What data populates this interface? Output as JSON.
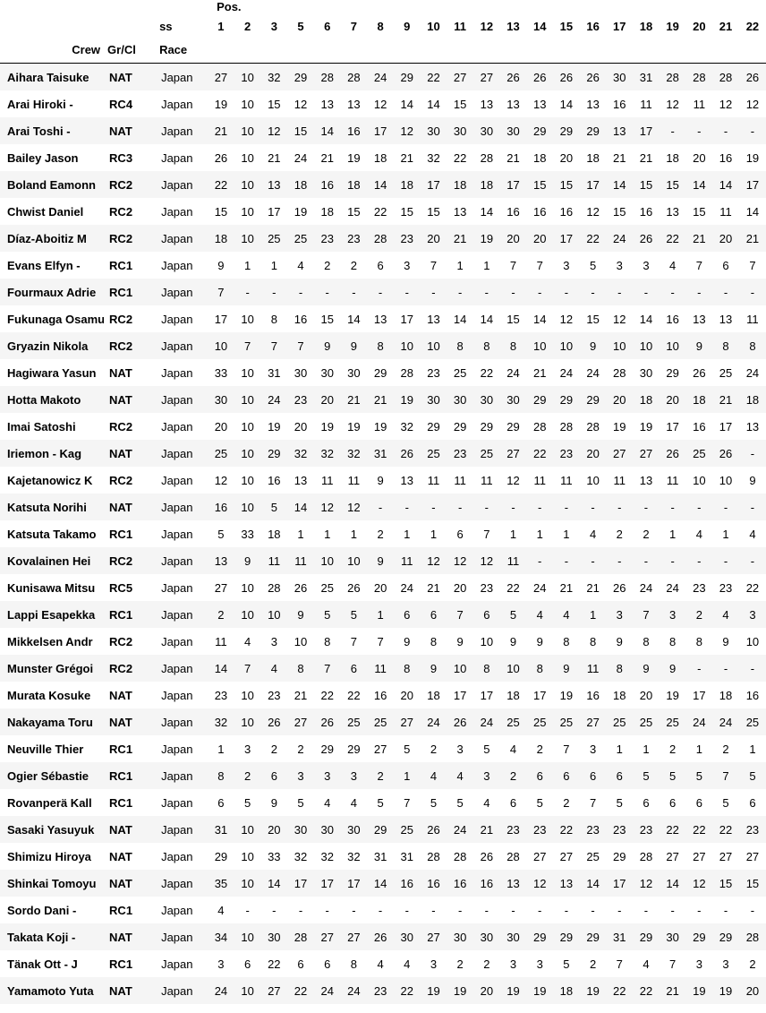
{
  "header": {
    "pos_label": "Pos.",
    "ss_label": "ss",
    "crew_label": "Crew",
    "group_label": "Gr/Cl",
    "race_label": "Race",
    "stages": [
      "1",
      "2",
      "3",
      "5",
      "6",
      "7",
      "8",
      "9",
      "10",
      "11",
      "12",
      "13",
      "14",
      "15",
      "16",
      "17",
      "18",
      "19",
      "20",
      "21",
      "22"
    ]
  },
  "rows": [
    {
      "crew": "Aihara Taisuke",
      "group": "NAT",
      "race": "Japan",
      "pos": [
        "27",
        "10",
        "32",
        "29",
        "28",
        "28",
        "24",
        "29",
        "22",
        "27",
        "27",
        "26",
        "26",
        "26",
        "26",
        "30",
        "31",
        "28",
        "28",
        "28",
        "26"
      ]
    },
    {
      "crew": "Arai Hiroki -",
      "group": "RC4",
      "race": "Japan",
      "pos": [
        "19",
        "10",
        "15",
        "12",
        "13",
        "13",
        "12",
        "14",
        "14",
        "15",
        "13",
        "13",
        "13",
        "14",
        "13",
        "16",
        "11",
        "12",
        "11",
        "12",
        "12"
      ]
    },
    {
      "crew": "Arai Toshi -",
      "group": "NAT",
      "race": "Japan",
      "pos": [
        "21",
        "10",
        "12",
        "15",
        "14",
        "16",
        "17",
        "12",
        "30",
        "30",
        "30",
        "30",
        "29",
        "29",
        "29",
        "13",
        "17",
        "-",
        "-",
        "-",
        "-"
      ]
    },
    {
      "crew": "Bailey Jason",
      "group": "RC3",
      "race": "Japan",
      "pos": [
        "26",
        "10",
        "21",
        "24",
        "21",
        "19",
        "18",
        "21",
        "32",
        "22",
        "28",
        "21",
        "18",
        "20",
        "18",
        "21",
        "21",
        "18",
        "20",
        "16",
        "19"
      ]
    },
    {
      "crew": "Boland Eamonn",
      "group": "RC2",
      "race": "Japan",
      "pos": [
        "22",
        "10",
        "13",
        "18",
        "16",
        "18",
        "14",
        "18",
        "17",
        "18",
        "18",
        "17",
        "15",
        "15",
        "17",
        "14",
        "15",
        "15",
        "14",
        "14",
        "17"
      ]
    },
    {
      "crew": "Chwist Daniel",
      "group": "RC2",
      "race": "Japan",
      "pos": [
        "15",
        "10",
        "17",
        "19",
        "18",
        "15",
        "22",
        "15",
        "15",
        "13",
        "14",
        "16",
        "16",
        "16",
        "12",
        "15",
        "16",
        "13",
        "15",
        "11",
        "14"
      ]
    },
    {
      "crew": "Díaz-Aboitiz M",
      "group": "RC2",
      "race": "Japan",
      "pos": [
        "18",
        "10",
        "25",
        "25",
        "23",
        "23",
        "28",
        "23",
        "20",
        "21",
        "19",
        "20",
        "20",
        "17",
        "22",
        "24",
        "26",
        "22",
        "21",
        "20",
        "21"
      ]
    },
    {
      "crew": "Evans Elfyn -",
      "group": "RC1",
      "race": "Japan",
      "pos": [
        "9",
        "1",
        "1",
        "4",
        "2",
        "2",
        "6",
        "3",
        "7",
        "1",
        "1",
        "7",
        "7",
        "3",
        "5",
        "3",
        "3",
        "4",
        "7",
        "6",
        "7"
      ]
    },
    {
      "crew": "Fourmaux Adrie",
      "group": "RC1",
      "race": "Japan",
      "pos": [
        "7",
        "-",
        "-",
        "-",
        "-",
        "-",
        "-",
        "-",
        "-",
        "-",
        "-",
        "-",
        "-",
        "-",
        "-",
        "-",
        "-",
        "-",
        "-",
        "-",
        "-"
      ]
    },
    {
      "crew": "Fukunaga Osamu",
      "group": "RC2",
      "race": "Japan",
      "pos": [
        "17",
        "10",
        "8",
        "16",
        "15",
        "14",
        "13",
        "17",
        "13",
        "14",
        "14",
        "15",
        "14",
        "12",
        "15",
        "12",
        "14",
        "16",
        "13",
        "13",
        "11"
      ]
    },
    {
      "crew": "Gryazin Nikola",
      "group": "RC2",
      "race": "Japan",
      "pos": [
        "10",
        "7",
        "7",
        "7",
        "9",
        "9",
        "8",
        "10",
        "10",
        "8",
        "8",
        "8",
        "10",
        "10",
        "9",
        "10",
        "10",
        "10",
        "9",
        "8",
        "8"
      ]
    },
    {
      "crew": "Hagiwara Yasun",
      "group": "NAT",
      "race": "Japan",
      "pos": [
        "33",
        "10",
        "31",
        "30",
        "30",
        "30",
        "29",
        "28",
        "23",
        "25",
        "22",
        "24",
        "21",
        "24",
        "24",
        "28",
        "30",
        "29",
        "26",
        "25",
        "24"
      ]
    },
    {
      "crew": "Hotta Makoto",
      "group": "NAT",
      "race": "Japan",
      "pos": [
        "30",
        "10",
        "24",
        "23",
        "20",
        "21",
        "21",
        "19",
        "30",
        "30",
        "30",
        "30",
        "29",
        "29",
        "29",
        "20",
        "18",
        "20",
        "18",
        "21",
        "18"
      ]
    },
    {
      "crew": "Imai Satoshi",
      "group": "RC2",
      "race": "Japan",
      "pos": [
        "20",
        "10",
        "19",
        "20",
        "19",
        "19",
        "19",
        "32",
        "29",
        "29",
        "29",
        "29",
        "28",
        "28",
        "28",
        "19",
        "19",
        "17",
        "16",
        "17",
        "13"
      ]
    },
    {
      "crew": "Iriemon - Kag",
      "group": "NAT",
      "race": "Japan",
      "pos": [
        "25",
        "10",
        "29",
        "32",
        "32",
        "32",
        "31",
        "26",
        "25",
        "23",
        "25",
        "27",
        "22",
        "23",
        "20",
        "27",
        "27",
        "26",
        "25",
        "26",
        "-"
      ]
    },
    {
      "crew": "Kajetanowicz K",
      "group": "RC2",
      "race": "Japan",
      "pos": [
        "12",
        "10",
        "16",
        "13",
        "11",
        "11",
        "9",
        "13",
        "11",
        "11",
        "11",
        "12",
        "11",
        "11",
        "10",
        "11",
        "13",
        "11",
        "10",
        "10",
        "9"
      ]
    },
    {
      "crew": "Katsuta Norihi",
      "group": "NAT",
      "race": "Japan",
      "pos": [
        "16",
        "10",
        "5",
        "14",
        "12",
        "12",
        "-",
        "-",
        "-",
        "-",
        "-",
        "-",
        "-",
        "-",
        "-",
        "-",
        "-",
        "-",
        "-",
        "-",
        "-"
      ]
    },
    {
      "crew": "Katsuta Takamo",
      "group": "RC1",
      "race": "Japan",
      "pos": [
        "5",
        "33",
        "18",
        "1",
        "1",
        "1",
        "2",
        "1",
        "1",
        "6",
        "7",
        "1",
        "1",
        "1",
        "4",
        "2",
        "2",
        "1",
        "4",
        "1",
        "4"
      ]
    },
    {
      "crew": "Kovalainen Hei",
      "group": "RC2",
      "race": "Japan",
      "pos": [
        "13",
        "9",
        "11",
        "11",
        "10",
        "10",
        "9",
        "11",
        "12",
        "12",
        "12",
        "11",
        "-",
        "-",
        "-",
        "-",
        "-",
        "-",
        "-",
        "-",
        "-"
      ]
    },
    {
      "crew": "Kunisawa Mitsu",
      "group": "RC5",
      "race": "Japan",
      "pos": [
        "27",
        "10",
        "28",
        "26",
        "25",
        "26",
        "20",
        "24",
        "21",
        "20",
        "23",
        "22",
        "24",
        "21",
        "21",
        "26",
        "24",
        "24",
        "23",
        "23",
        "22"
      ]
    },
    {
      "crew": "Lappi Esapekka",
      "group": "RC1",
      "race": "Japan",
      "pos": [
        "2",
        "10",
        "10",
        "9",
        "5",
        "5",
        "1",
        "6",
        "6",
        "7",
        "6",
        "5",
        "4",
        "4",
        "1",
        "3",
        "7",
        "3",
        "2",
        "4",
        "3"
      ]
    },
    {
      "crew": "Mikkelsen Andr",
      "group": "RC2",
      "race": "Japan",
      "pos": [
        "11",
        "4",
        "3",
        "10",
        "8",
        "7",
        "7",
        "9",
        "8",
        "9",
        "10",
        "9",
        "9",
        "8",
        "8",
        "9",
        "8",
        "8",
        "8",
        "9",
        "10"
      ]
    },
    {
      "crew": "Munster Grégoi",
      "group": "RC2",
      "race": "Japan",
      "pos": [
        "14",
        "7",
        "4",
        "8",
        "7",
        "6",
        "11",
        "8",
        "9",
        "10",
        "8",
        "10",
        "8",
        "9",
        "11",
        "8",
        "9",
        "9",
        "-",
        "-",
        "-"
      ]
    },
    {
      "crew": "Murata Kosuke",
      "group": "NAT",
      "race": "Japan",
      "pos": [
        "23",
        "10",
        "23",
        "21",
        "22",
        "22",
        "16",
        "20",
        "18",
        "17",
        "17",
        "18",
        "17",
        "19",
        "16",
        "18",
        "20",
        "19",
        "17",
        "18",
        "16"
      ]
    },
    {
      "crew": "Nakayama Toru",
      "group": "NAT",
      "race": "Japan",
      "pos": [
        "32",
        "10",
        "26",
        "27",
        "26",
        "25",
        "25",
        "27",
        "24",
        "26",
        "24",
        "25",
        "25",
        "25",
        "27",
        "25",
        "25",
        "25",
        "24",
        "24",
        "25"
      ]
    },
    {
      "crew": "Neuville Thier",
      "group": "RC1",
      "race": "Japan",
      "pos": [
        "1",
        "3",
        "2",
        "2",
        "29",
        "29",
        "27",
        "5",
        "2",
        "3",
        "5",
        "4",
        "2",
        "7",
        "3",
        "1",
        "1",
        "2",
        "1",
        "2",
        "1"
      ]
    },
    {
      "crew": "Ogier Sébastie",
      "group": "RC1",
      "race": "Japan",
      "pos": [
        "8",
        "2",
        "6",
        "3",
        "3",
        "3",
        "2",
        "1",
        "4",
        "4",
        "3",
        "2",
        "6",
        "6",
        "6",
        "6",
        "5",
        "5",
        "5",
        "7",
        "5"
      ]
    },
    {
      "crew": "Rovanperä Kall",
      "group": "RC1",
      "race": "Japan",
      "pos": [
        "6",
        "5",
        "9",
        "5",
        "4",
        "4",
        "5",
        "7",
        "5",
        "5",
        "4",
        "6",
        "5",
        "2",
        "7",
        "5",
        "6",
        "6",
        "6",
        "5",
        "6"
      ]
    },
    {
      "crew": "Sasaki Yasuyuk",
      "group": "NAT",
      "race": "Japan",
      "pos": [
        "31",
        "10",
        "20",
        "30",
        "30",
        "30",
        "29",
        "25",
        "26",
        "24",
        "21",
        "23",
        "23",
        "22",
        "23",
        "23",
        "23",
        "22",
        "22",
        "22",
        "23"
      ]
    },
    {
      "crew": "Shimizu Hiroya",
      "group": "NAT",
      "race": "Japan",
      "pos": [
        "29",
        "10",
        "33",
        "32",
        "32",
        "32",
        "31",
        "31",
        "28",
        "28",
        "26",
        "28",
        "27",
        "27",
        "25",
        "29",
        "28",
        "27",
        "27",
        "27",
        "27"
      ]
    },
    {
      "crew": "Shinkai Tomoyu",
      "group": "NAT",
      "race": "Japan",
      "pos": [
        "35",
        "10",
        "14",
        "17",
        "17",
        "17",
        "14",
        "16",
        "16",
        "16",
        "16",
        "13",
        "12",
        "13",
        "14",
        "17",
        "12",
        "14",
        "12",
        "15",
        "15"
      ]
    },
    {
      "crew": "Sordo Dani -",
      "group": "RC1",
      "race": "Japan",
      "pos": [
        "4",
        "-",
        "-",
        "-",
        "-",
        "-",
        "-",
        "-",
        "-",
        "-",
        "-",
        "-",
        "-",
        "-",
        "-",
        "-",
        "-",
        "-",
        "-",
        "-",
        "-"
      ]
    },
    {
      "crew": "Takata Koji -",
      "group": "NAT",
      "race": "Japan",
      "pos": [
        "34",
        "10",
        "30",
        "28",
        "27",
        "27",
        "26",
        "30",
        "27",
        "30",
        "30",
        "30",
        "29",
        "29",
        "29",
        "31",
        "29",
        "30",
        "29",
        "29",
        "28"
      ]
    },
    {
      "crew": "Tänak Ott - J",
      "group": "RC1",
      "race": "Japan",
      "pos": [
        "3",
        "6",
        "22",
        "6",
        "6",
        "8",
        "4",
        "4",
        "3",
        "2",
        "2",
        "3",
        "3",
        "5",
        "2",
        "7",
        "4",
        "7",
        "3",
        "3",
        "2"
      ]
    },
    {
      "crew": "Yamamoto Yuta",
      "group": "NAT",
      "race": "Japan",
      "pos": [
        "24",
        "10",
        "27",
        "22",
        "24",
        "24",
        "23",
        "22",
        "19",
        "19",
        "20",
        "19",
        "19",
        "18",
        "19",
        "22",
        "22",
        "21",
        "19",
        "19",
        "20"
      ]
    }
  ]
}
